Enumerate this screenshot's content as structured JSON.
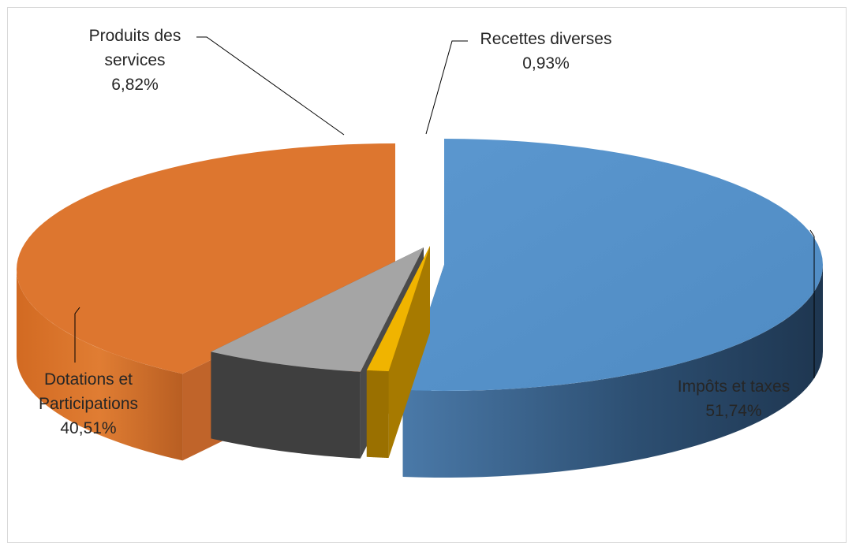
{
  "chart_data": {
    "type": "pie",
    "style": "3d-exploded",
    "slices": [
      {
        "name": "Impôts et taxes",
        "label_lines": [
          "Impôts et taxes"
        ],
        "pct_label": "51,74%",
        "value": 51.74,
        "color": "#5590c8"
      },
      {
        "name": "Recettes diverses",
        "label_lines": [
          "Recettes diverses"
        ],
        "pct_label": "0,93%",
        "value": 0.93,
        "color": "#f0b400"
      },
      {
        "name": "Produits des services",
        "label_lines": [
          "Produits des",
          "services"
        ],
        "pct_label": "6,82%",
        "value": 6.82,
        "color": "#a5a5a5"
      },
      {
        "name": "Dotations et Participations",
        "label_lines": [
          "Dotations et",
          "Participations"
        ],
        "pct_label": "40,51%",
        "value": 40.51,
        "color": "#dd762f"
      }
    ],
    "legend": "none",
    "data_labels": "outside with leader lines"
  }
}
